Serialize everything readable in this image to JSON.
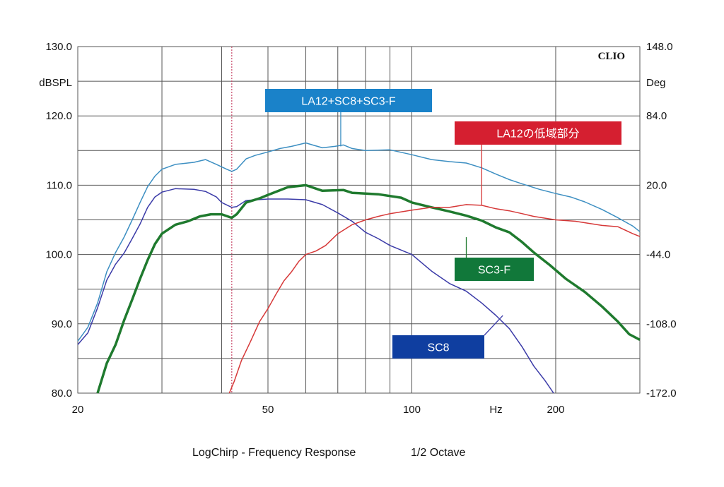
{
  "chart_data": {
    "type": "line",
    "brand": "CLIO",
    "x_scale": "log",
    "xlim": [
      20,
      300
    ],
    "x_ticks": [
      {
        "value": 20,
        "label": "20"
      },
      {
        "value": 50,
        "label": "50"
      },
      {
        "value": 100,
        "label": "100"
      },
      {
        "value": 150,
        "label": "Hz"
      },
      {
        "value": 200,
        "label": "200"
      }
    ],
    "y_left": {
      "unit_label": "dBSPL",
      "lim": [
        80,
        130
      ],
      "ticks": [
        "80.0",
        "90.0",
        "100.0",
        "110.0",
        "120.0",
        "130.0"
      ],
      "tick_values": [
        80,
        90,
        100,
        110,
        120,
        130
      ]
    },
    "y_right": {
      "unit_label": "Deg",
      "lim": [
        -172,
        148
      ],
      "ticks": [
        "-172.0",
        "-108.0",
        "-44.0",
        "20.0",
        "84.0",
        "148.0"
      ],
      "tick_values": [
        -172,
        -108,
        -44,
        20,
        84,
        148
      ]
    },
    "marker_line_x": 42,
    "grid": true,
    "footer_left": "LogChirp - Frequency Response",
    "footer_right": "1/2 Octave",
    "series": [
      {
        "name": "LA12+SC8+SC3-F",
        "color": "#3d8fc2",
        "width": 1.5,
        "points": [
          [
            20,
            87.5
          ],
          [
            21,
            89.5
          ],
          [
            22,
            93
          ],
          [
            23,
            97.5
          ],
          [
            24,
            100.3
          ],
          [
            25,
            102.5
          ],
          [
            26,
            105
          ],
          [
            27,
            107.5
          ],
          [
            28,
            109.8
          ],
          [
            29,
            111.3
          ],
          [
            30,
            112.3
          ],
          [
            32,
            113
          ],
          [
            35,
            113.3
          ],
          [
            37,
            113.7
          ],
          [
            39,
            113
          ],
          [
            41,
            112.3
          ],
          [
            42,
            112
          ],
          [
            43,
            112.3
          ],
          [
            45,
            113.8
          ],
          [
            47,
            114.3
          ],
          [
            50,
            114.8
          ],
          [
            53,
            115.3
          ],
          [
            56,
            115.6
          ],
          [
            60,
            116.1
          ],
          [
            62,
            115.8
          ],
          [
            65,
            115.4
          ],
          [
            69,
            115.6
          ],
          [
            72,
            115.8
          ],
          [
            75,
            115.3
          ],
          [
            80,
            115
          ],
          [
            90,
            115.1
          ],
          [
            100,
            114.4
          ],
          [
            110,
            113.7
          ],
          [
            120,
            113.4
          ],
          [
            130,
            113.2
          ],
          [
            140,
            112.5
          ],
          [
            150,
            111.6
          ],
          [
            160,
            110.8
          ],
          [
            170,
            110.2
          ],
          [
            185,
            109.4
          ],
          [
            200,
            108.8
          ],
          [
            215,
            108.3
          ],
          [
            230,
            107.6
          ],
          [
            250,
            106.5
          ],
          [
            270,
            105.3
          ],
          [
            290,
            104.1
          ],
          [
            300,
            103.3
          ]
        ]
      },
      {
        "name": "SC8",
        "color": "#3b3ba8",
        "width": 1.5,
        "points": [
          [
            20,
            87
          ],
          [
            21,
            88.7
          ],
          [
            22,
            92.3
          ],
          [
            23,
            96.3
          ],
          [
            24,
            98.6
          ],
          [
            25,
            100.2
          ],
          [
            26,
            102.3
          ],
          [
            27,
            104.4
          ],
          [
            28,
            106.8
          ],
          [
            29,
            108.3
          ],
          [
            30,
            109
          ],
          [
            32,
            109.5
          ],
          [
            35,
            109.4
          ],
          [
            37,
            109.1
          ],
          [
            39,
            108.3
          ],
          [
            40,
            107.5
          ],
          [
            42,
            106.8
          ],
          [
            43,
            106.9
          ],
          [
            45,
            107.8
          ],
          [
            50,
            108
          ],
          [
            55,
            108
          ],
          [
            60,
            107.9
          ],
          [
            65,
            107.2
          ],
          [
            70,
            106
          ],
          [
            75,
            104.8
          ],
          [
            80,
            103.2
          ],
          [
            85,
            102.3
          ],
          [
            90,
            101.3
          ],
          [
            100,
            100
          ],
          [
            110,
            97.6
          ],
          [
            120,
            95.8
          ],
          [
            130,
            94.7
          ],
          [
            140,
            93
          ],
          [
            150,
            91.2
          ],
          [
            160,
            89.3
          ],
          [
            170,
            86.7
          ],
          [
            180,
            83.9
          ],
          [
            190,
            81.8
          ],
          [
            198,
            80
          ]
        ]
      },
      {
        "name": "SC3-F",
        "color": "#1f7a2e",
        "width": 3.5,
        "points": [
          [
            22,
            80
          ],
          [
            23,
            84.3
          ],
          [
            24,
            87
          ],
          [
            25,
            90.5
          ],
          [
            26,
            93.5
          ],
          [
            27,
            96.5
          ],
          [
            28,
            99.2
          ],
          [
            29,
            101.5
          ],
          [
            30,
            103
          ],
          [
            32,
            104.3
          ],
          [
            34,
            104.8
          ],
          [
            36,
            105.5
          ],
          [
            38,
            105.8
          ],
          [
            40,
            105.8
          ],
          [
            42,
            105.3
          ],
          [
            43,
            105.8
          ],
          [
            45,
            107.5
          ],
          [
            48,
            108.1
          ],
          [
            50,
            108.6
          ],
          [
            55,
            109.7
          ],
          [
            60,
            110
          ],
          [
            65,
            109.2
          ],
          [
            72,
            109.3
          ],
          [
            75,
            108.9
          ],
          [
            85,
            108.7
          ],
          [
            95,
            108.2
          ],
          [
            100,
            107.5
          ],
          [
            110,
            106.8
          ],
          [
            120,
            106.2
          ],
          [
            130,
            105.6
          ],
          [
            140,
            104.9
          ],
          [
            150,
            103.9
          ],
          [
            160,
            103.2
          ],
          [
            170,
            101.8
          ],
          [
            180,
            100.3
          ],
          [
            195,
            98.4
          ],
          [
            210,
            96.5
          ],
          [
            230,
            94.6
          ],
          [
            250,
            92.5
          ],
          [
            270,
            90.3
          ],
          [
            285,
            88.5
          ],
          [
            300,
            87.7
          ]
        ]
      },
      {
        "name": "LA12の低域部分",
        "color": "#d63838",
        "width": 1.5,
        "points": [
          [
            41.5,
            80
          ],
          [
            42.5,
            81.7
          ],
          [
            44,
            84.7
          ],
          [
            46,
            87.5
          ],
          [
            48,
            90.3
          ],
          [
            50,
            92.2
          ],
          [
            52,
            94.3
          ],
          [
            54,
            96.2
          ],
          [
            56,
            97.5
          ],
          [
            58,
            99
          ],
          [
            60,
            100
          ],
          [
            63,
            100.5
          ],
          [
            66,
            101.3
          ],
          [
            70,
            103
          ],
          [
            75,
            104.3
          ],
          [
            80,
            105
          ],
          [
            85,
            105.5
          ],
          [
            90,
            105.9
          ],
          [
            100,
            106.4
          ],
          [
            110,
            106.8
          ],
          [
            120,
            106.8
          ],
          [
            130,
            107.2
          ],
          [
            140,
            107.1
          ],
          [
            150,
            106.6
          ],
          [
            160,
            106.3
          ],
          [
            170,
            105.9
          ],
          [
            180,
            105.5
          ],
          [
            200,
            105
          ],
          [
            220,
            104.8
          ],
          [
            250,
            104.2
          ],
          [
            270,
            104
          ],
          [
            290,
            103
          ],
          [
            300,
            102.6
          ]
        ]
      }
    ],
    "callouts": [
      {
        "series": "LA12+SC8+SC3-F",
        "label": "LA12+SC8+SC3-F",
        "bg": "#1a82c9",
        "anchor_x": 71,
        "anchor_y": 115.6
      },
      {
        "series": "LA12の低域部分",
        "label": "LA12の低域部分",
        "bg": "#d51f30",
        "anchor_x": 140,
        "anchor_y": 107.1
      },
      {
        "series": "SC3-F",
        "label": "SC3-F",
        "bg": "#11783a",
        "anchor_x": 130,
        "anchor_y": 102.5
      },
      {
        "series": "SC8",
        "label": "SC8",
        "bg": "#0f3ea0",
        "anchor_x": 155,
        "anchor_y": 91.2
      }
    ]
  }
}
